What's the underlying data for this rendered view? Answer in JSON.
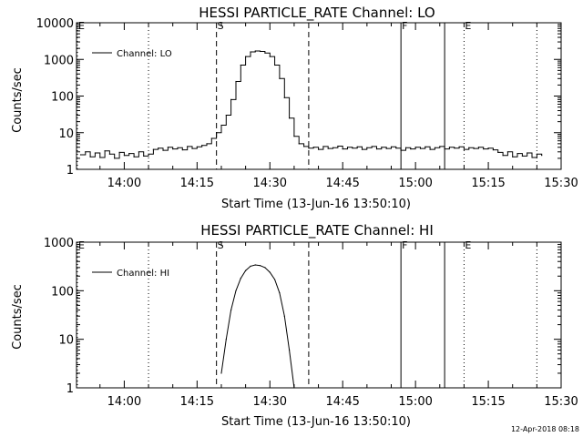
{
  "footer_text": "12-Apr-2018 08:18",
  "chart_data": [
    {
      "type": "line",
      "title": "HESSI PARTICLE_RATE Channel: LO",
      "xlabel": "Start Time (13-Jun-16 13:50:10)",
      "ylabel": "Counts/sec",
      "yscale": "log",
      "ylim": [
        1,
        10000
      ],
      "y_tick_labels": [
        "1",
        "10",
        "100",
        "1000",
        "10000"
      ],
      "x_tick_labels": [
        "14:00",
        "14:15",
        "14:30",
        "14:45",
        "15:00",
        "15:15",
        "15:30"
      ],
      "grid": false,
      "legend": {
        "placement": "top-left",
        "entries": [
          "Channel: LO"
        ]
      },
      "markers": [
        {
          "label": "E",
          "time": "13:50",
          "style": "dotted"
        },
        {
          "label": "",
          "time": "14:05",
          "style": "dotted"
        },
        {
          "label": "S",
          "time": "14:19",
          "style": "dashed"
        },
        {
          "label": "",
          "time": "14:38",
          "style": "dashed"
        },
        {
          "label": "F",
          "time": "14:57",
          "style": "solid"
        },
        {
          "label": "",
          "time": "15:06",
          "style": "solid"
        },
        {
          "label": "E",
          "time": "15:10",
          "style": "dotted"
        },
        {
          "label": "",
          "time": "15:25",
          "style": "dotted"
        }
      ],
      "series": [
        {
          "name": "Channel: LO",
          "x": [
            "13:51",
            "13:52",
            "13:53",
            "13:54",
            "13:55",
            "13:56",
            "13:57",
            "13:58",
            "13:59",
            "14:00",
            "14:01",
            "14:02",
            "14:03",
            "14:04",
            "14:05",
            "14:06",
            "14:07",
            "14:08",
            "14:09",
            "14:10",
            "14:11",
            "14:12",
            "14:13",
            "14:14",
            "14:15",
            "14:16",
            "14:17",
            "14:18",
            "14:19",
            "14:20",
            "14:21",
            "14:22",
            "14:23",
            "14:24",
            "14:25",
            "14:26",
            "14:27",
            "14:28",
            "14:29",
            "14:30",
            "14:31",
            "14:32",
            "14:33",
            "14:34",
            "14:35",
            "14:36",
            "14:37",
            "14:38",
            "14:39",
            "14:40",
            "14:41",
            "14:42",
            "14:43",
            "14:44",
            "14:45",
            "14:46",
            "14:47",
            "14:48",
            "14:49",
            "14:50",
            "14:51",
            "14:52",
            "14:53",
            "14:54",
            "14:55",
            "14:56",
            "14:57",
            "14:58",
            "14:59",
            "15:00",
            "15:01",
            "15:02",
            "15:03",
            "15:04",
            "15:05",
            "15:06",
            "15:07",
            "15:08",
            "15:09",
            "15:10",
            "15:11",
            "15:12",
            "15:13",
            "15:14",
            "15:15",
            "15:16",
            "15:17",
            "15:18",
            "15:19",
            "15:20",
            "15:21",
            "15:22",
            "15:23",
            "15:24",
            "15:25",
            "15:26"
          ],
          "values": [
            2.5,
            3.0,
            2.2,
            2.8,
            2.1,
            3.2,
            2.6,
            2.0,
            2.9,
            2.4,
            2.7,
            2.2,
            3.0,
            2.3,
            2.6,
            3.5,
            3.8,
            3.3,
            4.0,
            3.6,
            3.9,
            3.4,
            4.2,
            3.7,
            4.1,
            4.5,
            5.0,
            7,
            10,
            16,
            30,
            80,
            250,
            700,
            1200,
            1600,
            1700,
            1650,
            1500,
            1200,
            700,
            300,
            90,
            25,
            8,
            5,
            4.2,
            3.8,
            4.0,
            3.5,
            4.2,
            3.7,
            3.9,
            4.3,
            3.6,
            4.0,
            3.8,
            4.1,
            3.5,
            3.9,
            4.2,
            3.6,
            4.0,
            3.7,
            4.1,
            3.8,
            3.3,
            3.9,
            3.6,
            4.0,
            3.7,
            4.1,
            3.5,
            3.9,
            4.2,
            3.6,
            4.0,
            3.8,
            4.1,
            3.5,
            3.9,
            3.7,
            4.0,
            3.6,
            3.8,
            3.4,
            2.9,
            2.4,
            3.0,
            2.2,
            2.7,
            2.3,
            2.8,
            2.1,
            2.6,
            2.4
          ]
        }
      ]
    },
    {
      "type": "line",
      "title": "HESSI PARTICLE_RATE Channel: HI",
      "xlabel": "Start Time (13-Jun-16 13:50:10)",
      "ylabel": "Counts/sec",
      "yscale": "log",
      "ylim": [
        1,
        1000
      ],
      "y_tick_labels": [
        "1",
        "10",
        "100",
        "1000"
      ],
      "x_tick_labels": [
        "14:00",
        "14:15",
        "14:30",
        "14:45",
        "15:00",
        "15:15",
        "15:30"
      ],
      "grid": false,
      "legend": {
        "placement": "top-left",
        "entries": [
          "Channel: HI"
        ]
      },
      "markers": [
        {
          "label": "E",
          "time": "13:50",
          "style": "dotted"
        },
        {
          "label": "",
          "time": "14:05",
          "style": "dotted"
        },
        {
          "label": "S",
          "time": "14:19",
          "style": "dashed"
        },
        {
          "label": "",
          "time": "14:38",
          "style": "dashed"
        },
        {
          "label": "F",
          "time": "14:57",
          "style": "solid"
        },
        {
          "label": "",
          "time": "15:06",
          "style": "solid"
        },
        {
          "label": "E",
          "time": "15:10",
          "style": "dotted"
        },
        {
          "label": "",
          "time": "15:25",
          "style": "dotted"
        }
      ],
      "series": [
        {
          "name": "Channel: HI",
          "x": [
            "14:20",
            "14:21",
            "14:22",
            "14:23",
            "14:24",
            "14:25",
            "14:26",
            "14:27",
            "14:28",
            "14:29",
            "14:30",
            "14:31",
            "14:32",
            "14:33",
            "14:34",
            "14:35"
          ],
          "values": [
            2,
            10,
            40,
            100,
            180,
            260,
            320,
            340,
            330,
            300,
            240,
            170,
            90,
            30,
            6,
            1
          ]
        }
      ]
    }
  ]
}
